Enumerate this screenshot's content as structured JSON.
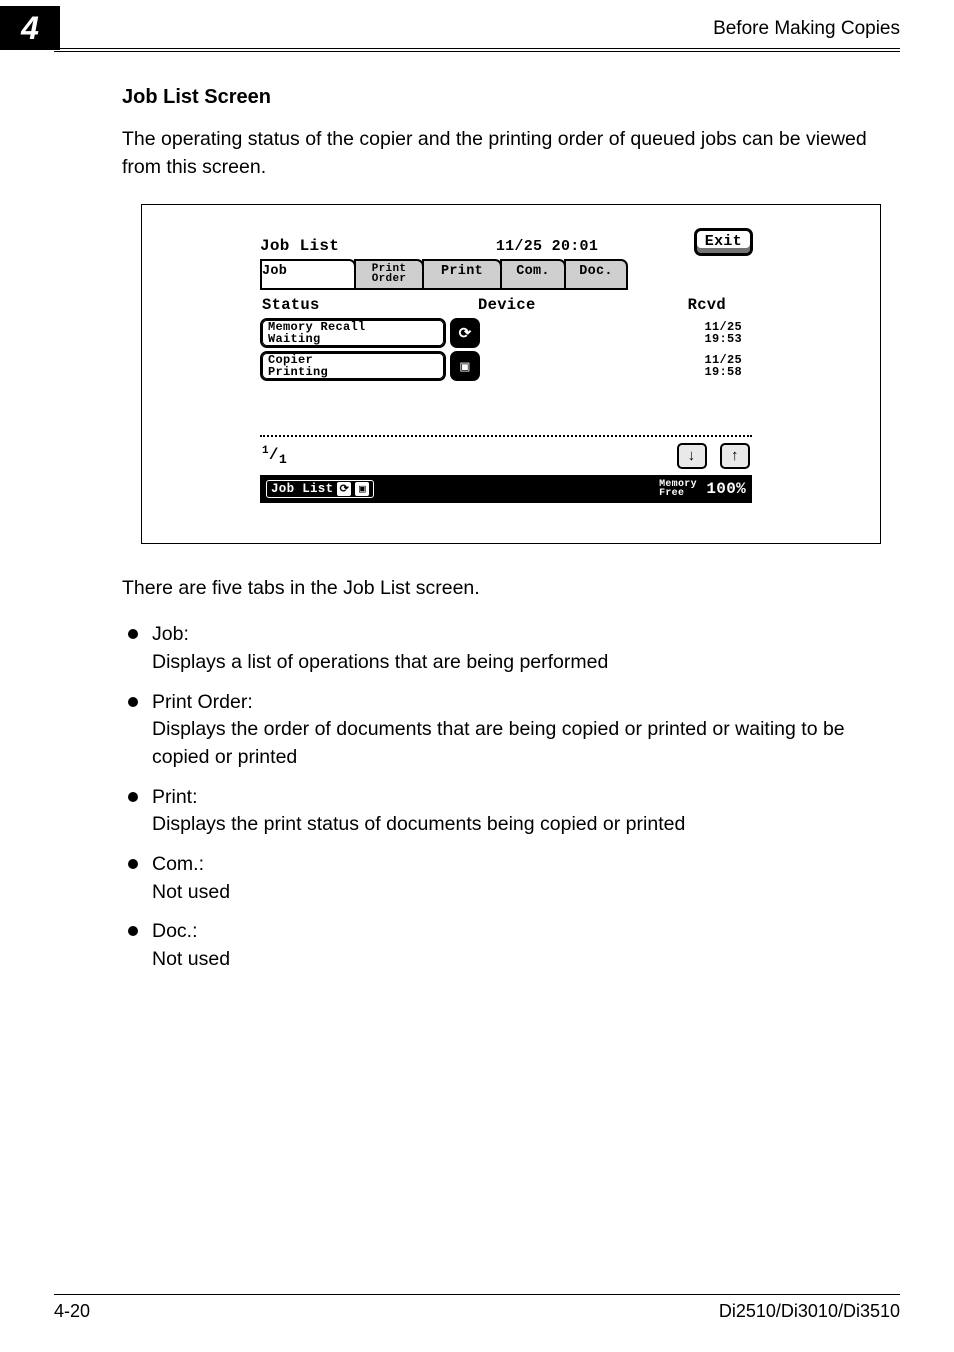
{
  "chapter_number": "4",
  "header_right": "Before Making Copies",
  "section_title": "Job List Screen",
  "intro_text": "The operating status of the copier and the printing order of queued jobs can be viewed from this screen.",
  "lcd": {
    "title": "Job List",
    "datetime": "11/25 20:01",
    "exit": "Exit",
    "tabs": {
      "job": "Job",
      "order_l1": "Print",
      "order_l2": "Order",
      "print": "Print",
      "com": "Com.",
      "doc": "Doc."
    },
    "columns": {
      "c1": "Status",
      "c2": "Device",
      "c3": "Rcvd"
    },
    "rows": [
      {
        "l1": "Memory Recall",
        "l2": "Waiting",
        "icon_name": "recall-icon",
        "icon_glyph": "⟳",
        "d1": "11/25",
        "d2": "19:53"
      },
      {
        "l1": "Copier",
        "l2": "Printing",
        "icon_name": "printer-icon",
        "icon_glyph": "▣",
        "d1": "11/25",
        "d2": "19:58"
      }
    ],
    "page_num_sup": "1",
    "page_num_sub": "1",
    "arrow_down": "↓",
    "arrow_up": "↑",
    "footer_label": "Job List",
    "footer_icon1": "⟳",
    "footer_icon2": "▣",
    "mem_l1": "Memory",
    "mem_l2": "Free",
    "mem_pct": "100%"
  },
  "tabs_intro": "There are five tabs in the Job List screen.",
  "bullets": [
    {
      "title": "Job:",
      "desc": "Displays a list of operations that are being performed"
    },
    {
      "title": "Print Order:",
      "desc": "Displays the order of documents that are being copied or printed or waiting to be copied or printed"
    },
    {
      "title": "Print:",
      "desc": "Displays the print status of documents being copied or printed"
    },
    {
      "title": "Com.:",
      "desc": "Not used"
    },
    {
      "title": "Doc.:",
      "desc": "Not used"
    }
  ],
  "footer_left": "4-20",
  "footer_right": "Di2510/Di3010/Di3510"
}
